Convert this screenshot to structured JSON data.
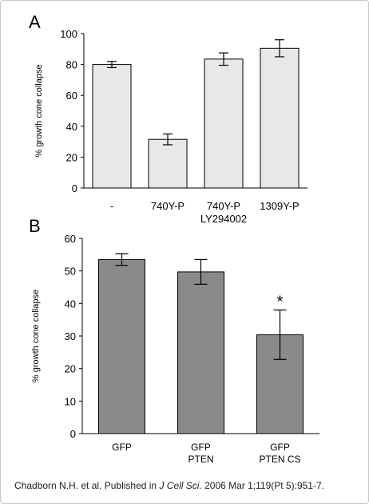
{
  "credit": {
    "prefix": "Chadborn N.H. et al.  Published in ",
    "journal": "J Cell Sci.",
    "suffix": " 2006 Mar 1;119(Pt 5):951-7."
  },
  "chart_data": [
    {
      "panel_label": "A",
      "type": "bar",
      "categories": [
        "-",
        "740Y-P",
        "740Y-P\nLY294002",
        "1309Y-P"
      ],
      "values": [
        80,
        31.5,
        83.5,
        90.5
      ],
      "errors": [
        2,
        3.5,
        4,
        5.5
      ],
      "ylabel": "% growth cone collapse",
      "xlabel": "",
      "ylim": [
        0,
        100
      ],
      "yticks": [
        0,
        20,
        40,
        60,
        80,
        100
      ],
      "bar_color": "#e8e8e8",
      "grid": false,
      "annotations": []
    },
    {
      "panel_label": "B",
      "type": "bar",
      "categories": [
        "GFP",
        "GFP\nPTEN",
        "GFP\nPTEN CS"
      ],
      "values": [
        53.5,
        49.7,
        30.4
      ],
      "errors": [
        1.8,
        3.8,
        7.6
      ],
      "ylabel": "% growth cone collapse",
      "xlabel": "",
      "ylim": [
        0,
        60
      ],
      "yticks": [
        0,
        10,
        20,
        30,
        40,
        50,
        60
      ],
      "bar_color": "#8a8a8a",
      "grid": false,
      "annotations": [
        {
          "category": "GFP\nPTEN CS",
          "text": "*"
        }
      ]
    }
  ]
}
